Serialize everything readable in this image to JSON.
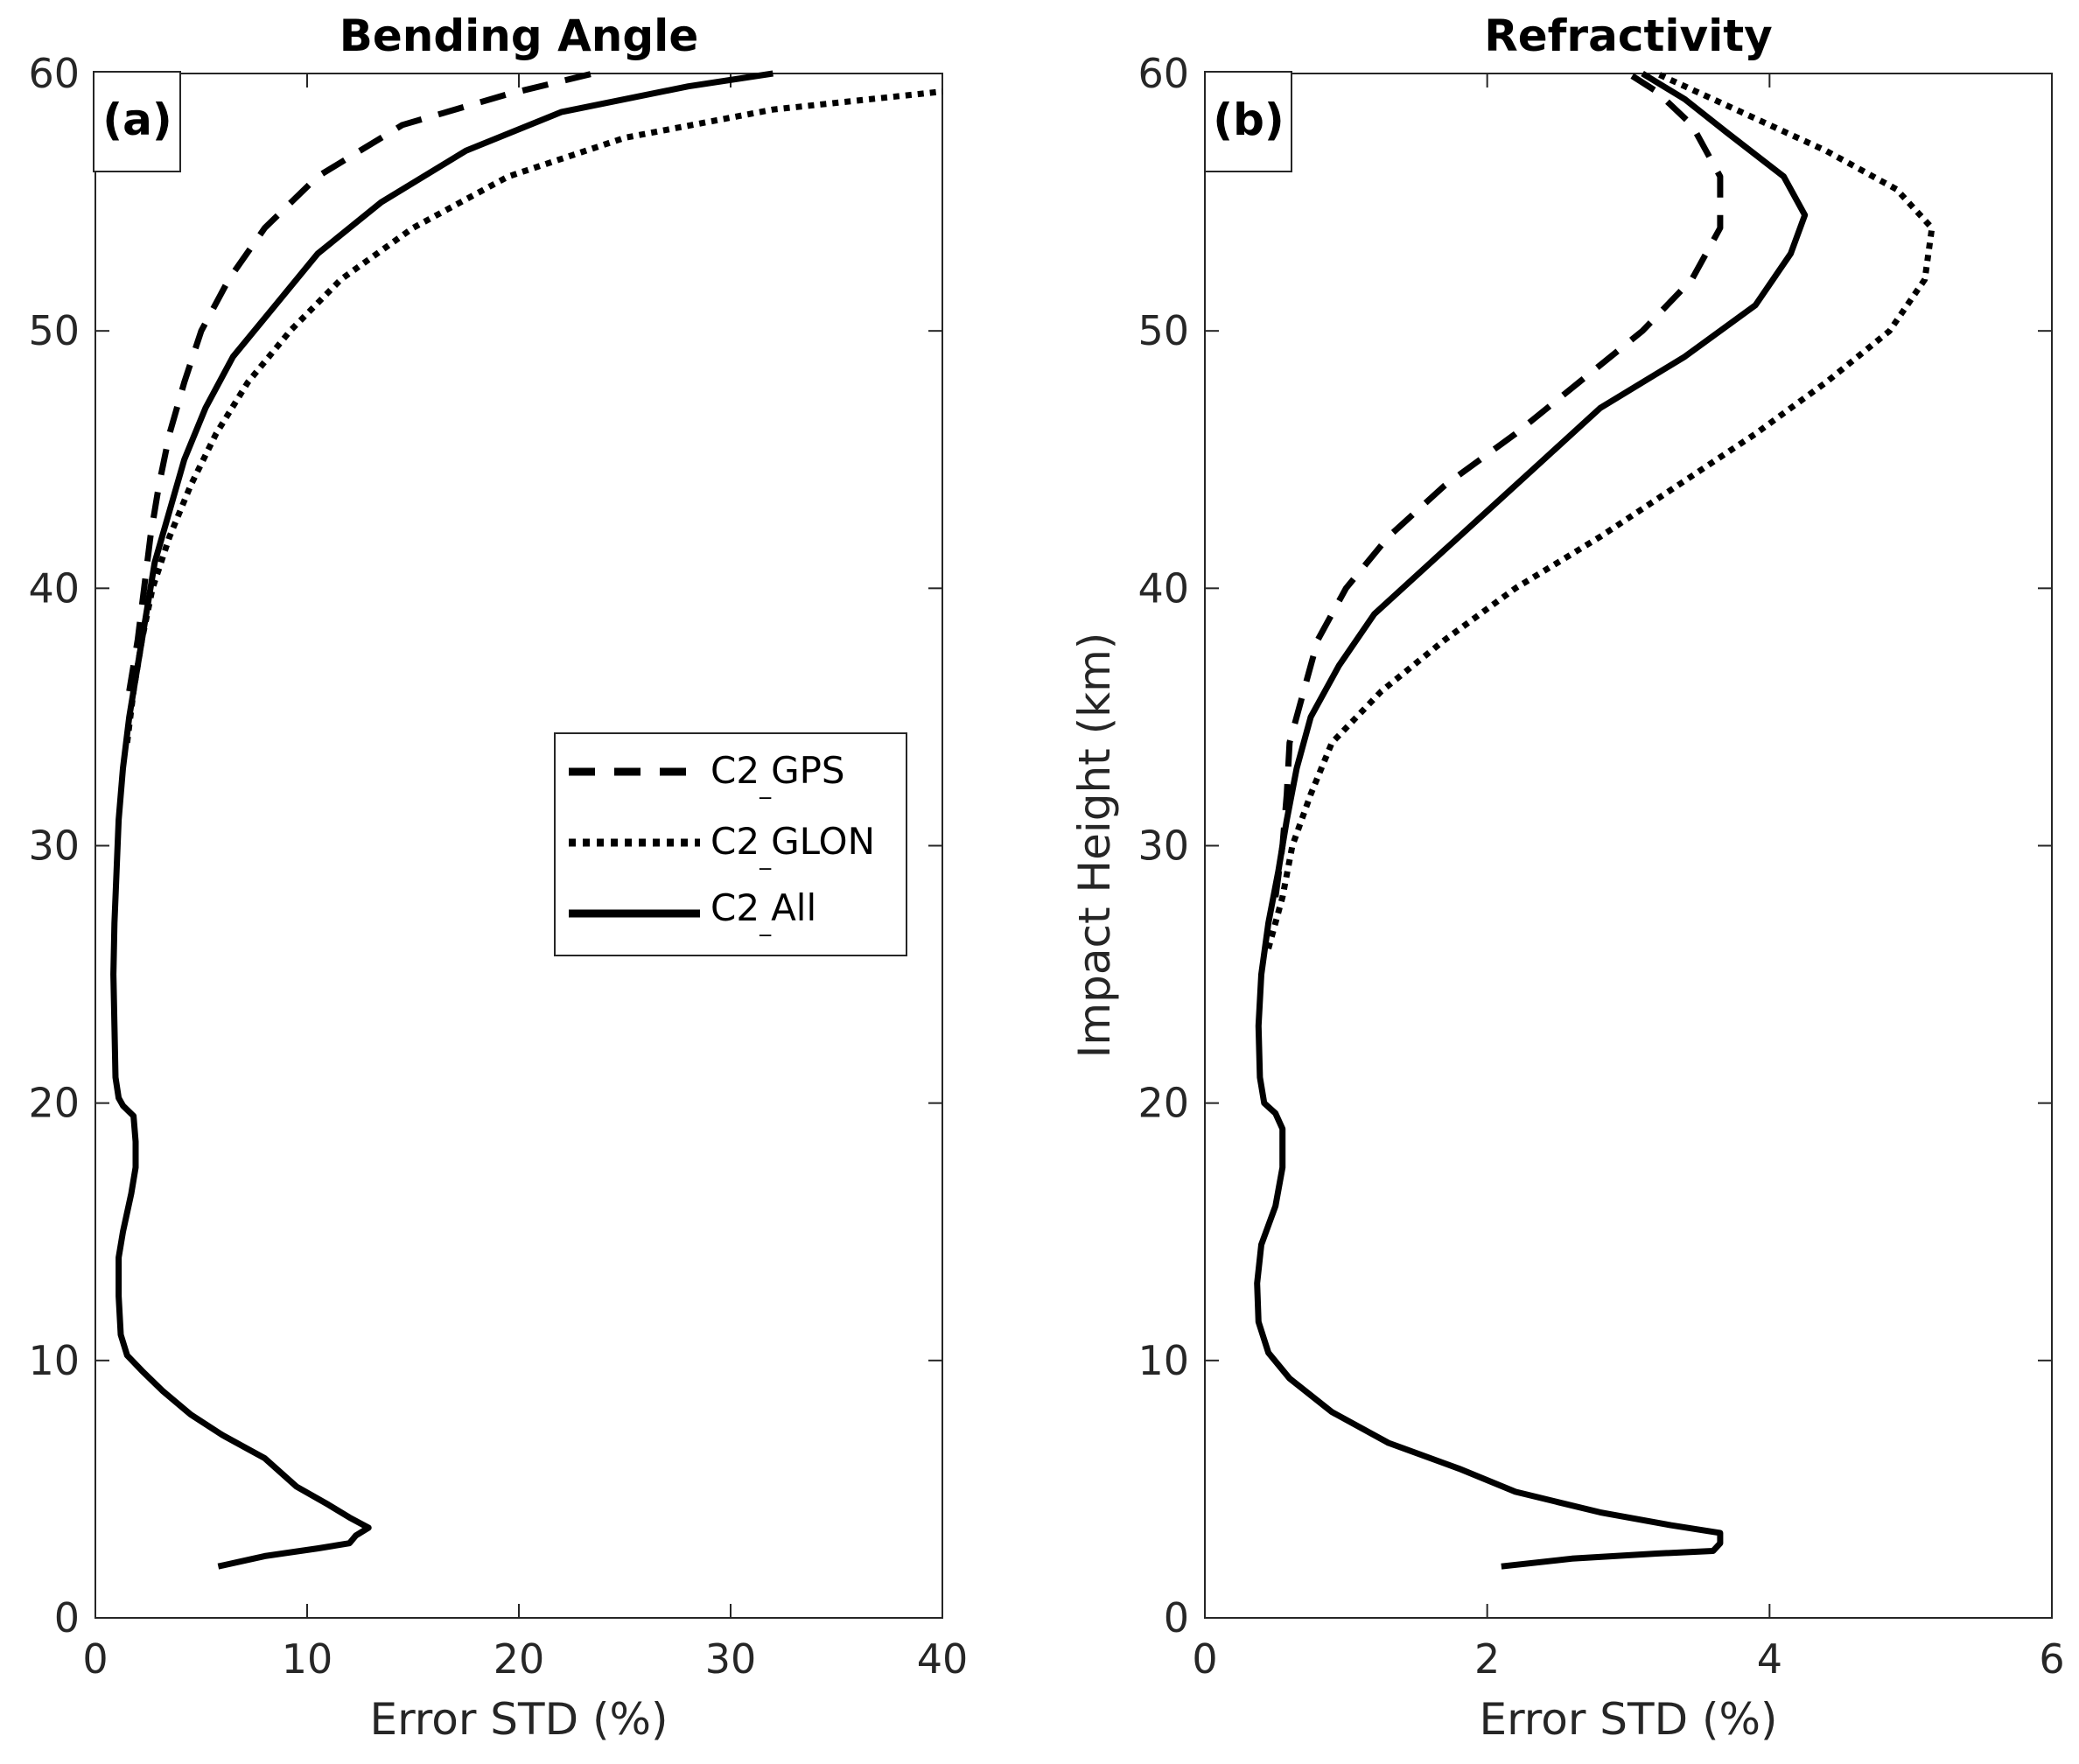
{
  "chart_data": [
    {
      "type": "line",
      "title": "Bending Angle",
      "panel_label": "(a)",
      "xlabel": "Error STD (%)",
      "ylabel": "",
      "xlim": [
        0,
        40
      ],
      "ylim": [
        0,
        60
      ],
      "xticks": [
        0,
        10,
        20,
        30,
        40
      ],
      "yticks": [
        0,
        10,
        20,
        30,
        40,
        50,
        60
      ],
      "legend": {
        "placement": "center-right",
        "entries": [
          {
            "name": "C2_GPS",
            "main": "C2",
            "sub": "_",
            "rest": "GPS",
            "style": "dashed"
          },
          {
            "name": "C2_GLON",
            "main": "C2",
            "sub": "_",
            "rest": "GLON",
            "style": "dotted"
          },
          {
            "name": "C2_All",
            "main": "C2",
            "sub": "_",
            "rest": "All",
            "style": "solid"
          }
        ]
      },
      "series": [
        {
          "name": "C2_All",
          "style": "solid",
          "points": [
            [
              5.8,
              2
            ],
            [
              8,
              2.4
            ],
            [
              10.5,
              2.7
            ],
            [
              12,
              2.9
            ],
            [
              12.3,
              3.2
            ],
            [
              12.9,
              3.5
            ],
            [
              12,
              3.9
            ],
            [
              11,
              4.4
            ],
            [
              9.5,
              5.1
            ],
            [
              8,
              6.2
            ],
            [
              6,
              7.1
            ],
            [
              4.5,
              7.9
            ],
            [
              3.2,
              8.8
            ],
            [
              2.2,
              9.6
            ],
            [
              1.5,
              10.2
            ],
            [
              1.2,
              11
            ],
            [
              1.1,
              12.5
            ],
            [
              1.1,
              14
            ],
            [
              1.3,
              15
            ],
            [
              1.7,
              16.5
            ],
            [
              1.9,
              17.5
            ],
            [
              1.9,
              18.5
            ],
            [
              1.8,
              19.5
            ],
            [
              1.3,
              19.9
            ],
            [
              1.1,
              20.2
            ],
            [
              0.95,
              21
            ],
            [
              0.9,
              23
            ],
            [
              0.85,
              25
            ],
            [
              0.9,
              27
            ],
            [
              1.0,
              29
            ],
            [
              1.1,
              31
            ],
            [
              1.3,
              33
            ],
            [
              1.6,
              35
            ],
            [
              2.0,
              37
            ],
            [
              2.4,
              39
            ],
            [
              2.8,
              41
            ],
            [
              3.5,
              43
            ],
            [
              4.2,
              45
            ],
            [
              5.2,
              47
            ],
            [
              6.5,
              49
            ],
            [
              8.5,
              51
            ],
            [
              10.5,
              53
            ],
            [
              13.5,
              55
            ],
            [
              17.5,
              57
            ],
            [
              22,
              58.5
            ],
            [
              28,
              59.5
            ],
            [
              32,
              60
            ]
          ]
        },
        {
          "name": "C2_GPS",
          "style": "dashed",
          "points": [
            [
              1.6,
              36
            ],
            [
              2.0,
              38
            ],
            [
              2.3,
              40
            ],
            [
              2.6,
              42
            ],
            [
              3.0,
              44
            ],
            [
              3.5,
              46
            ],
            [
              4.2,
              48
            ],
            [
              5.0,
              50
            ],
            [
              6.3,
              52
            ],
            [
              8.0,
              54
            ],
            [
              10.5,
              56
            ],
            [
              14.5,
              58
            ],
            [
              19.5,
              59.2
            ],
            [
              23.5,
              60
            ]
          ]
        },
        {
          "name": "C2_GLON",
          "style": "dotted",
          "points": [
            [
              1.5,
              34
            ],
            [
              1.8,
              36
            ],
            [
              2.2,
              38
            ],
            [
              2.7,
              40
            ],
            [
              3.5,
              42
            ],
            [
              4.5,
              44
            ],
            [
              5.7,
              46
            ],
            [
              7.2,
              48
            ],
            [
              9.2,
              50
            ],
            [
              11.6,
              52
            ],
            [
              15,
              54
            ],
            [
              19.5,
              56
            ],
            [
              25,
              57.5
            ],
            [
              32,
              58.6
            ],
            [
              40,
              59.3
            ]
          ]
        }
      ]
    },
    {
      "type": "line",
      "title": "Refractivity",
      "panel_label": "(b)",
      "xlabel": "Error STD (%)",
      "ylabel": "Impact Height (km)",
      "xlim": [
        0,
        6
      ],
      "ylim": [
        0,
        60
      ],
      "xticks": [
        0,
        2,
        4,
        6
      ],
      "yticks": [
        0,
        10,
        20,
        30,
        40,
        50,
        60
      ],
      "series": [
        {
          "name": "C2_All",
          "style": "solid",
          "points": [
            [
              2.1,
              2
            ],
            [
              2.6,
              2.3
            ],
            [
              3.2,
              2.5
            ],
            [
              3.6,
              2.6
            ],
            [
              3.65,
              2.9
            ],
            [
              3.65,
              3.3
            ],
            [
              3.3,
              3.6
            ],
            [
              2.8,
              4.1
            ],
            [
              2.2,
              4.9
            ],
            [
              1.8,
              5.8
            ],
            [
              1.3,
              6.8
            ],
            [
              0.9,
              8
            ],
            [
              0.6,
              9.3
            ],
            [
              0.45,
              10.3
            ],
            [
              0.38,
              11.5
            ],
            [
              0.37,
              13
            ],
            [
              0.4,
              14.5
            ],
            [
              0.5,
              16
            ],
            [
              0.55,
              17.5
            ],
            [
              0.55,
              19
            ],
            [
              0.5,
              19.6
            ],
            [
              0.42,
              20
            ],
            [
              0.39,
              21
            ],
            [
              0.38,
              23
            ],
            [
              0.4,
              25
            ],
            [
              0.45,
              27
            ],
            [
              0.52,
              29
            ],
            [
              0.58,
              31
            ],
            [
              0.65,
              33
            ],
            [
              0.75,
              35
            ],
            [
              0.95,
              37
            ],
            [
              1.2,
              39
            ],
            [
              1.6,
              41
            ],
            [
              2.0,
              43
            ],
            [
              2.4,
              45
            ],
            [
              2.8,
              47
            ],
            [
              3.4,
              49
            ],
            [
              3.9,
              51
            ],
            [
              4.15,
              53
            ],
            [
              4.25,
              54.5
            ],
            [
              4.1,
              56
            ],
            [
              3.7,
              57.7
            ],
            [
              3.4,
              59
            ],
            [
              3.1,
              60
            ]
          ]
        },
        {
          "name": "C2_GPS",
          "style": "dashed",
          "points": [
            [
              0.5,
              28
            ],
            [
              0.55,
              30
            ],
            [
              0.58,
              32
            ],
            [
              0.6,
              34
            ],
            [
              0.7,
              36
            ],
            [
              0.8,
              38
            ],
            [
              1.0,
              40
            ],
            [
              1.3,
              42
            ],
            [
              1.7,
              44
            ],
            [
              2.2,
              46
            ],
            [
              2.65,
              48
            ],
            [
              3.1,
              50
            ],
            [
              3.45,
              52
            ],
            [
              3.65,
              54
            ],
            [
              3.65,
              56
            ],
            [
              3.45,
              58
            ],
            [
              3.2,
              59.3
            ],
            [
              3.0,
              60
            ]
          ]
        },
        {
          "name": "C2_GLON",
          "style": "dotted",
          "points": [
            [
              0.45,
              26
            ],
            [
              0.55,
              28
            ],
            [
              0.62,
              30
            ],
            [
              0.75,
              32
            ],
            [
              0.9,
              34
            ],
            [
              1.25,
              36
            ],
            [
              1.7,
              38
            ],
            [
              2.2,
              40
            ],
            [
              2.8,
              42
            ],
            [
              3.35,
              44
            ],
            [
              3.9,
              46
            ],
            [
              4.4,
              48
            ],
            [
              4.85,
              50
            ],
            [
              5.1,
              52
            ],
            [
              5.15,
              54
            ],
            [
              4.9,
              55.5
            ],
            [
              4.4,
              57
            ],
            [
              3.8,
              58.5
            ],
            [
              3.2,
              60
            ]
          ]
        }
      ]
    }
  ]
}
